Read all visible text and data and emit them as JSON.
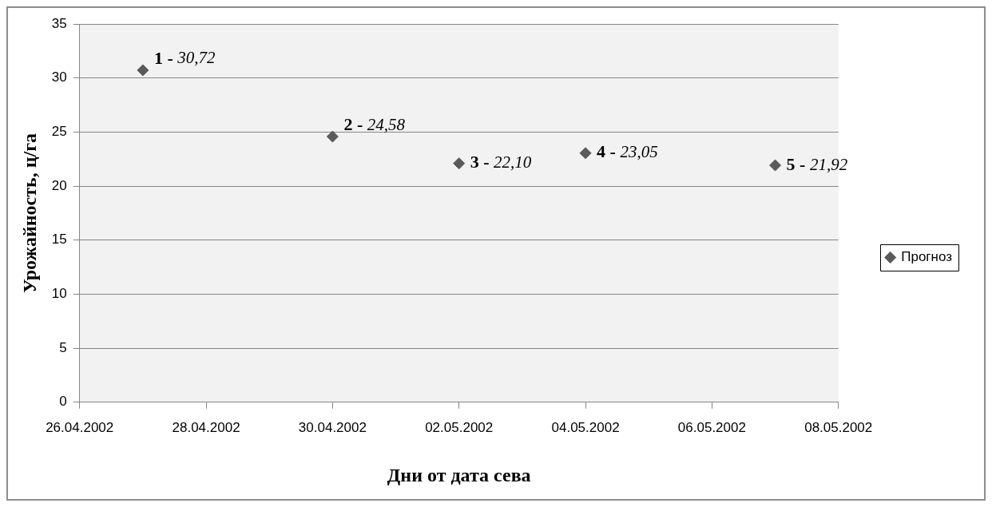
{
  "chart_data": {
    "type": "scatter",
    "xlabel": "Дни от дата сева",
    "ylabel": "Урожайность, ц/га",
    "x": [
      "2002-04-27",
      "2002-04-30",
      "2002-05-02",
      "2002-05-04",
      "2002-05-07"
    ],
    "series": [
      {
        "name": "Прогноз",
        "color": "#5a5a5a",
        "values": [
          30.72,
          24.58,
          22.1,
          23.05,
          21.92
        ],
        "value_labels": [
          "1 - 30,72",
          "2 - 24,58",
          "3 - 22,10",
          "4 - 23,05",
          "5 - 21,92"
        ]
      }
    ],
    "xlim": [
      "2002-04-26",
      "2002-05-08"
    ],
    "xticks": [
      {
        "value": "2002-04-26",
        "label": "26.04.2002"
      },
      {
        "value": "2002-04-28",
        "label": "28.04.2002"
      },
      {
        "value": "2002-04-30",
        "label": "30.04.2002"
      },
      {
        "value": "2002-05-02",
        "label": "02.05.2002"
      },
      {
        "value": "2002-05-04",
        "label": "04.05.2002"
      },
      {
        "value": "2002-05-06",
        "label": "06.05.2002"
      },
      {
        "value": "2002-05-08",
        "label": "08.05.2002"
      }
    ],
    "ylim": [
      0,
      35
    ],
    "yticks": [
      0,
      5,
      10,
      15,
      20,
      25,
      30,
      35
    ],
    "grid": "y",
    "legend": "right",
    "marker": "diamond"
  }
}
